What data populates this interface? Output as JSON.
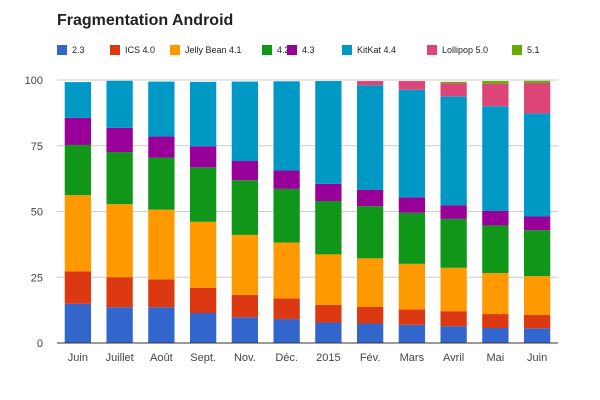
{
  "chart_data": {
    "type": "bar",
    "stacked": true,
    "title": "Fragmentation Android",
    "xlabel": "",
    "ylabel": "",
    "ylim": [
      0,
      100
    ],
    "yticks": [
      "0",
      "25",
      "50",
      "75",
      "100"
    ],
    "grid": true,
    "legend_position": "top",
    "categories": [
      "Juin",
      "Juillet",
      "Août",
      "Sept.",
      "Nov.",
      "Déc.",
      "2015",
      "Fév.",
      "Mars",
      "Avril",
      "Mai",
      "Juin"
    ],
    "series": [
      {
        "name": "2.3",
        "color": "#3366cc",
        "values": [
          14.9,
          13.6,
          13.6,
          11.4,
          9.8,
          9.1,
          7.8,
          7.4,
          6.9,
          6.4,
          5.7,
          5.6
        ]
      },
      {
        "name": "ICS 4.0",
        "color": "#dc3912",
        "values": [
          12.3,
          11.4,
          10.6,
          9.6,
          8.5,
          7.8,
          6.7,
          6.4,
          5.9,
          5.7,
          5.3,
          5.1
        ]
      },
      {
        "name": "Jelly Bean 4.1",
        "color": "#ff9900",
        "values": [
          29.0,
          27.8,
          26.5,
          25.1,
          22.8,
          21.3,
          19.2,
          18.4,
          17.3,
          16.5,
          15.6,
          14.7
        ]
      },
      {
        "name": "4.2",
        "color": "#109618",
        "values": [
          19.1,
          19.8,
          19.8,
          20.7,
          20.8,
          20.4,
          20.3,
          19.8,
          19.4,
          18.6,
          18.1,
          17.5
        ]
      },
      {
        "name": "4.3",
        "color": "#990099",
        "values": [
          10.3,
          9.2,
          8.0,
          8.0,
          7.3,
          7.0,
          6.5,
          6.3,
          5.9,
          5.2,
          5.5,
          5.2
        ]
      },
      {
        "name": "KitKat 4.4",
        "color": "#0099c6",
        "values": [
          13.6,
          17.9,
          20.9,
          24.5,
          30.2,
          33.9,
          39.1,
          39.7,
          40.9,
          41.4,
          39.8,
          39.2
        ]
      },
      {
        "name": "Lollipop 5.0",
        "color": "#dd4477",
        "values": [
          0,
          0,
          0,
          0,
          0,
          0,
          0,
          1.6,
          3.3,
          5.0,
          8.6,
          11.6
        ]
      },
      {
        "name": "5.1",
        "color": "#66aa00",
        "values": [
          0,
          0,
          0,
          0,
          0,
          0,
          0,
          0,
          0,
          0.5,
          1.0,
          0.8
        ]
      }
    ]
  }
}
